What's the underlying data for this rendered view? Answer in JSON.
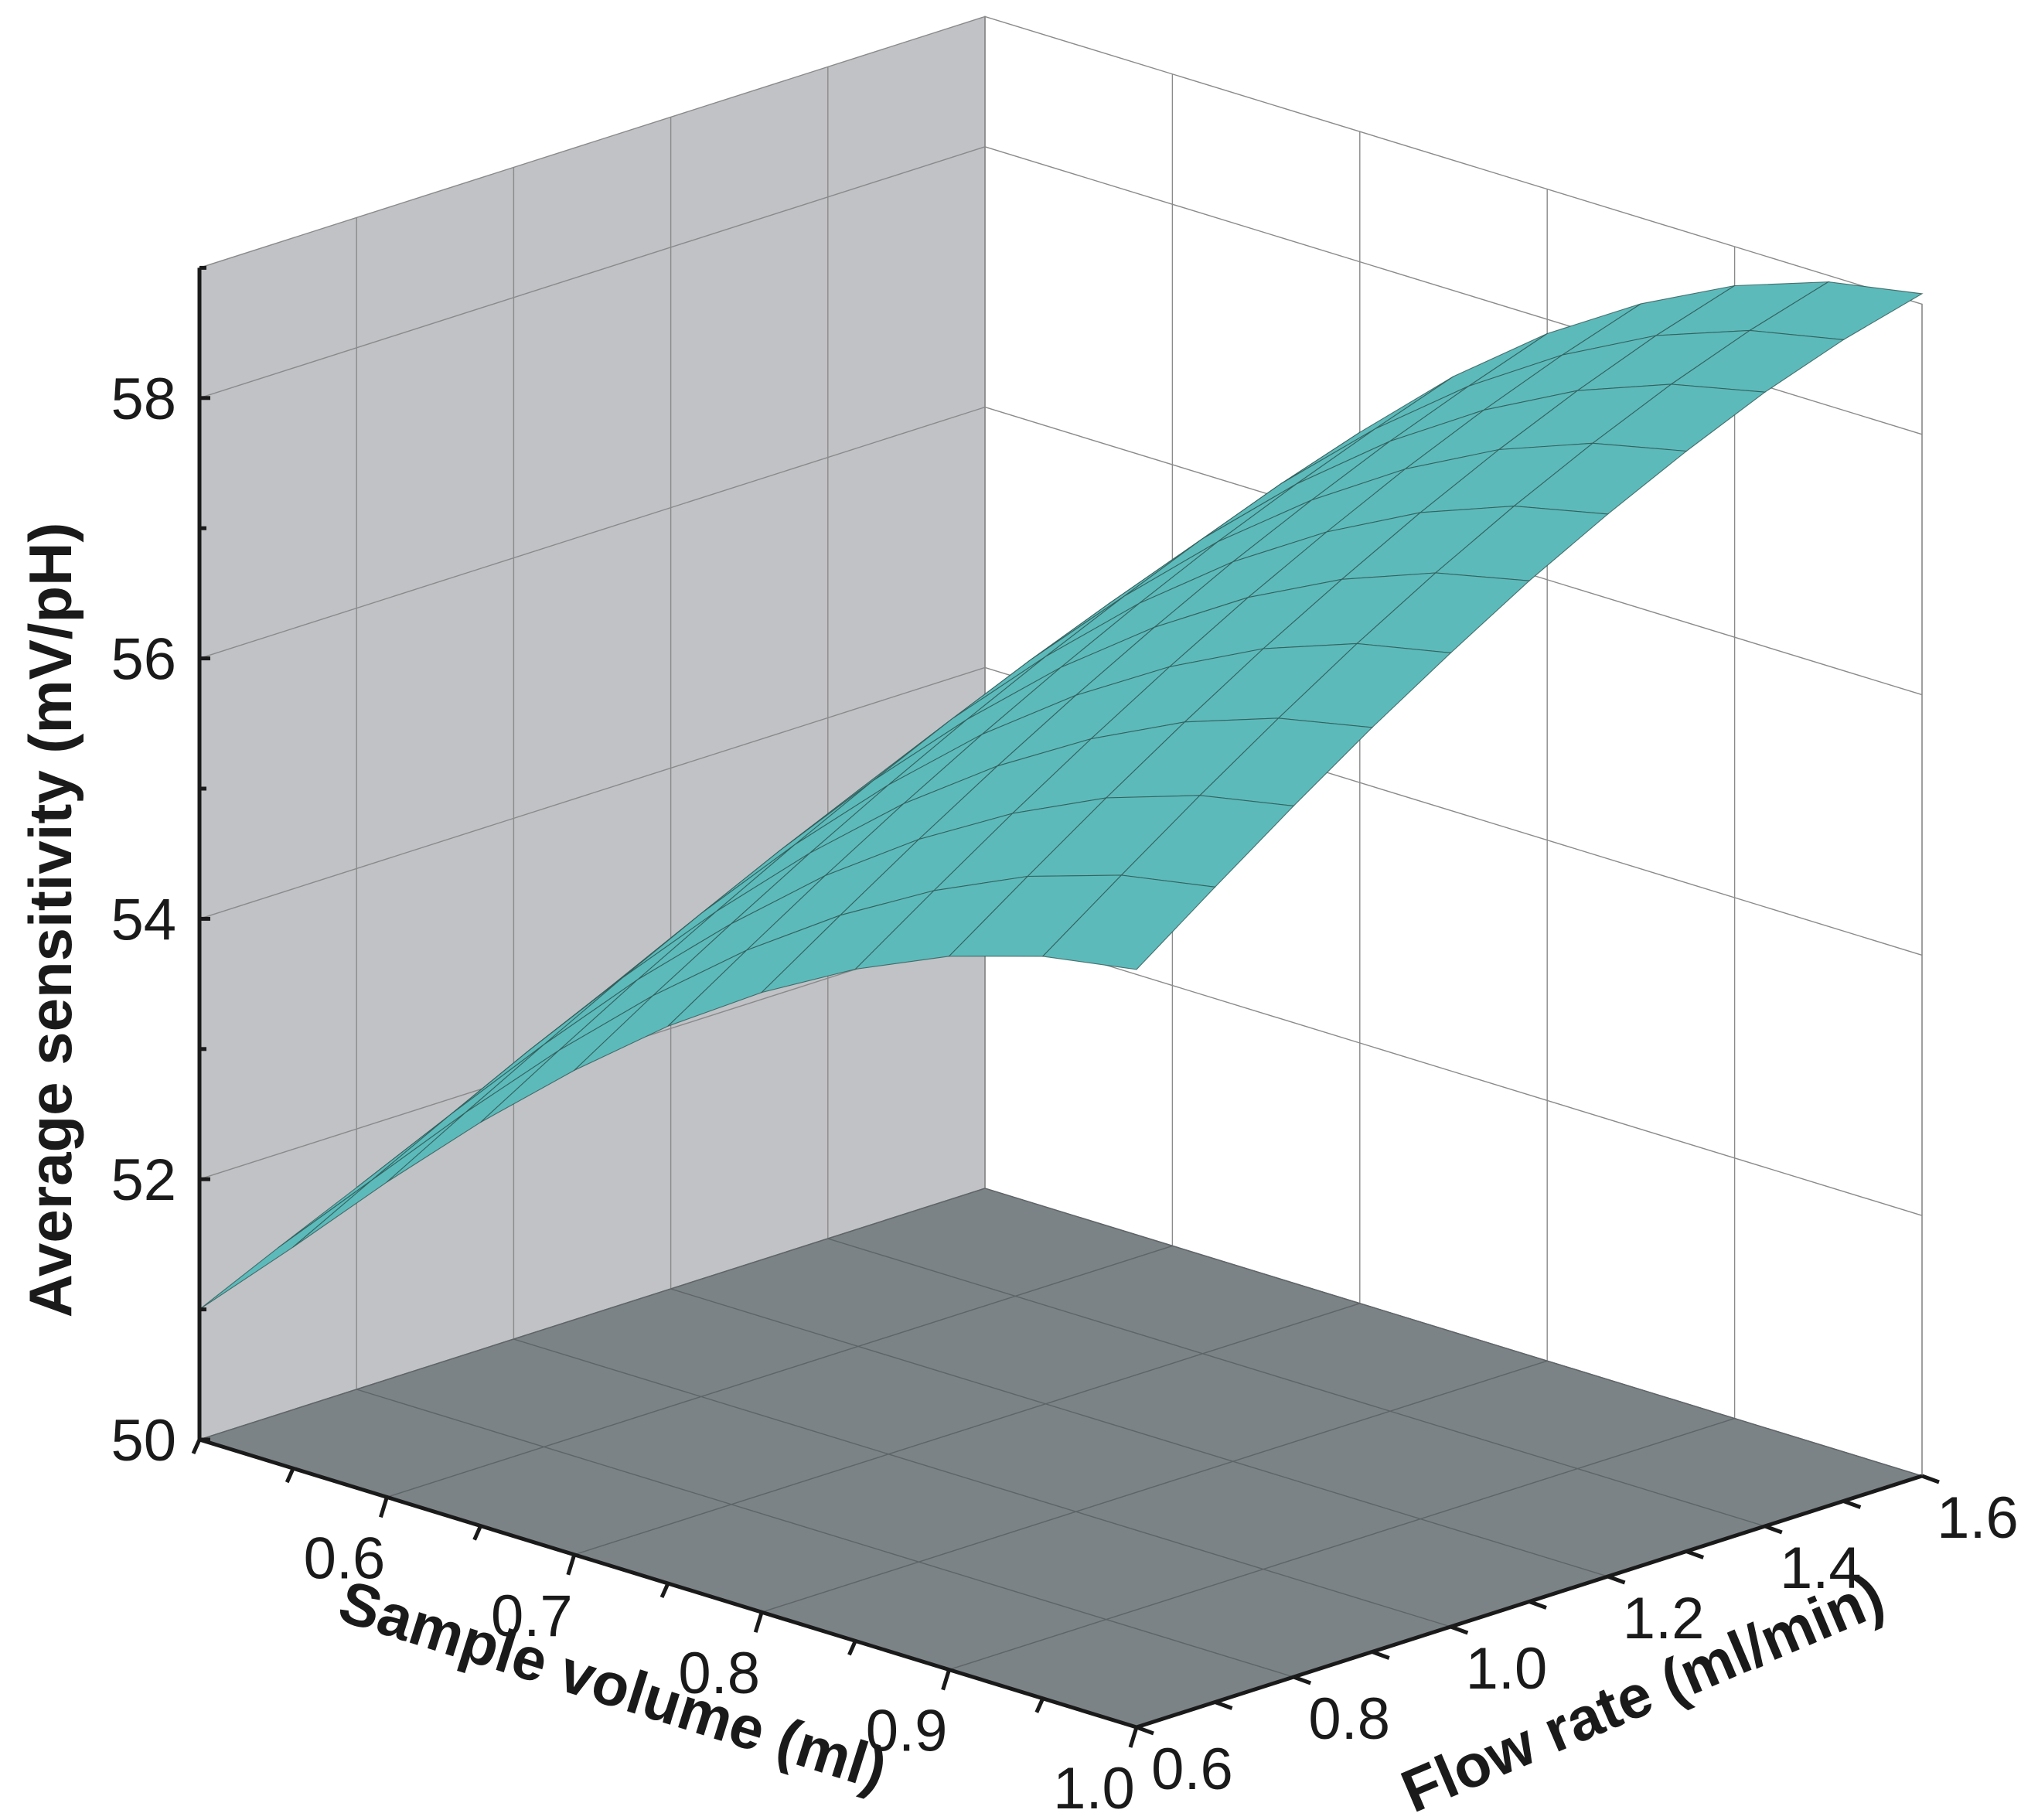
{
  "chart_data": {
    "type": "surface",
    "title": "",
    "xlabel": "Sample volume (ml)",
    "ylabel": "Flow rate (ml/min)",
    "zlabel": "Average sensitivity (mV/pH)",
    "xlim": [
      0.5,
      1.0
    ],
    "ylim": [
      0.6,
      1.6
    ],
    "zlim": [
      50,
      59
    ],
    "x_ticks": [
      "0.6",
      "0.7",
      "0.8",
      "0.9",
      "1.0"
    ],
    "y_ticks": [
      "0.6",
      "0.8",
      "1.0",
      "1.2",
      "1.4",
      "1.6"
    ],
    "z_ticks": [
      "50",
      "52",
      "54",
      "56",
      "58"
    ],
    "x": [
      0.5,
      0.55,
      0.6,
      0.65,
      0.7,
      0.75,
      0.8,
      0.85,
      0.9,
      0.95,
      1.0
    ],
    "y": [
      0.6,
      0.7,
      0.8,
      0.9,
      1.0,
      1.1,
      1.2,
      1.3,
      1.4,
      1.5,
      1.6
    ],
    "z_description_rows_by_x_cols_by_y": "rows correspond to x (sample volume), columns to y (flow rate)",
    "z": [
      [
        51.0,
        51.28,
        51.55,
        51.82,
        52.08,
        52.33,
        52.57,
        52.8,
        53.02,
        53.23,
        53.43
      ],
      [
        51.7,
        52.02,
        52.33,
        52.63,
        52.91,
        53.18,
        53.43,
        53.67,
        53.89,
        54.1,
        54.29
      ],
      [
        52.42,
        52.76,
        53.09,
        53.41,
        53.71,
        54.0,
        54.27,
        54.52,
        54.75,
        54.97,
        55.17
      ],
      [
        53.1,
        53.46,
        53.81,
        54.14,
        54.46,
        54.76,
        55.04,
        55.3,
        55.54,
        55.76,
        55.96
      ],
      [
        53.72,
        54.1,
        54.46,
        54.81,
        55.14,
        55.45,
        55.74,
        56.01,
        56.26,
        56.49,
        56.69
      ],
      [
        54.28,
        54.67,
        55.05,
        55.41,
        55.75,
        56.07,
        56.37,
        56.65,
        56.9,
        57.13,
        57.34
      ],
      [
        54.76,
        55.16,
        55.55,
        55.92,
        56.27,
        56.6,
        56.91,
        57.19,
        57.45,
        57.68,
        57.89
      ],
      [
        55.16,
        55.57,
        55.97,
        56.35,
        56.71,
        57.05,
        57.36,
        57.65,
        57.91,
        58.14,
        58.34
      ],
      [
        55.48,
        55.9,
        56.31,
        56.7,
        57.07,
        57.41,
        57.73,
        58.02,
        58.28,
        58.51,
        58.7
      ],
      [
        55.7,
        56.13,
        56.55,
        56.95,
        57.33,
        57.68,
        58.0,
        58.29,
        58.55,
        58.77,
        58.95
      ],
      [
        55.82,
        56.26,
        56.69,
        57.1,
        57.48,
        57.84,
        58.16,
        58.45,
        58.71,
        58.92,
        59.08
      ]
    ],
    "surface_color": "#5cbaba",
    "back_wall_color": "#c0c2c6",
    "floor_color": "#7b8386",
    "grid": true
  }
}
